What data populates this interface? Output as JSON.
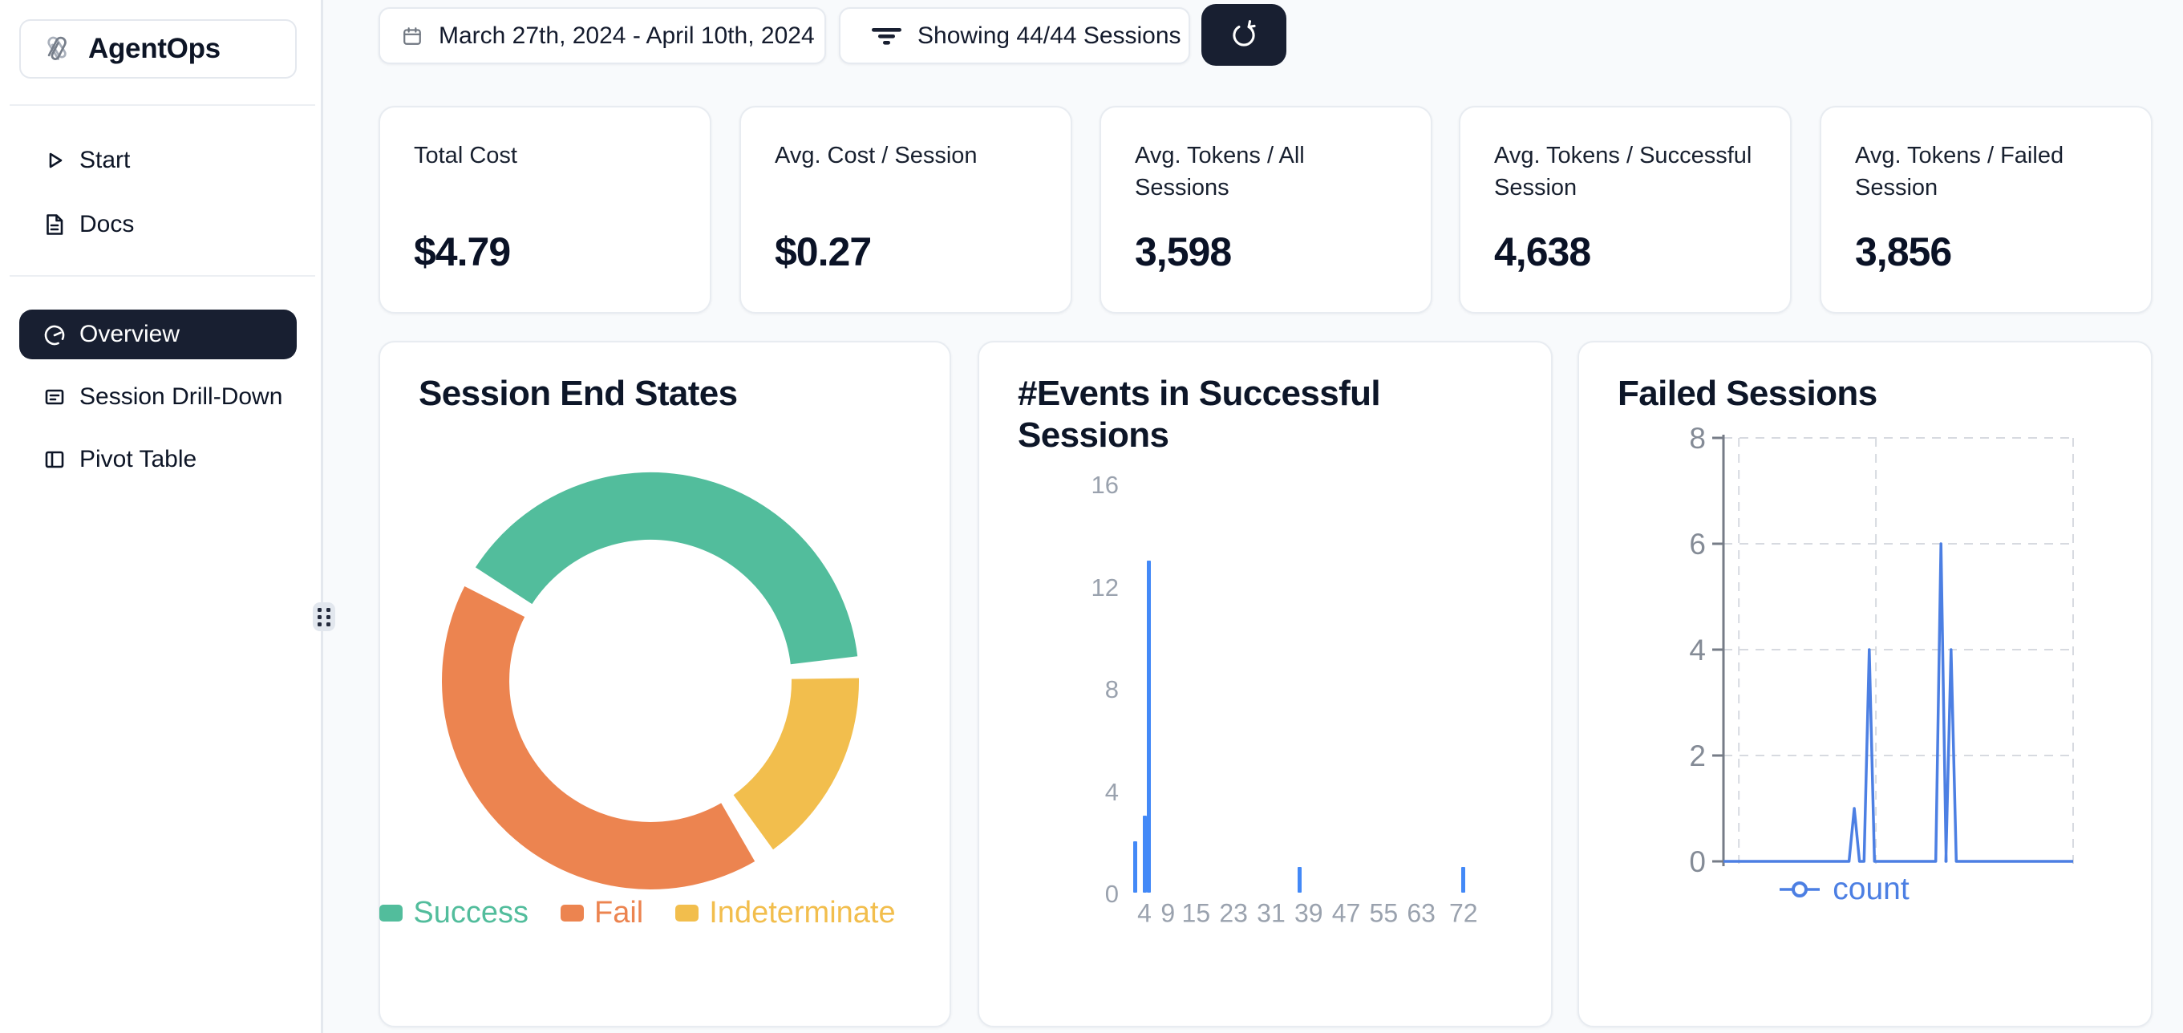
{
  "sidebar": {
    "logo_text": "AgentOps",
    "nav": [
      {
        "label": "Start",
        "icon": "play-icon"
      },
      {
        "label": "Docs",
        "icon": "document-icon"
      }
    ],
    "nav_views": [
      {
        "label": "Overview",
        "icon": "gauge-icon",
        "active": true
      },
      {
        "label": "Session Drill-Down",
        "icon": "list-icon",
        "active": false
      },
      {
        "label": "Pivot Table",
        "icon": "columns-icon",
        "active": false
      }
    ]
  },
  "toolbar": {
    "date_range": "March 27th, 2024 - April 10th, 2024",
    "filter_label": "Showing 44/44 Sessions"
  },
  "stat_cards": [
    {
      "label": "Total Cost",
      "value": "$4.79"
    },
    {
      "label": "Avg. Cost / Session",
      "value": "$0.27"
    },
    {
      "label": "Avg. Tokens / All Sessions",
      "value": "3,598"
    },
    {
      "label": "Avg. Tokens / Successful Session",
      "value": "4,638"
    },
    {
      "label": "Avg. Tokens / Failed Session",
      "value": "3,856"
    }
  ],
  "chart_data": [
    {
      "type": "pie",
      "title": "Session End States",
      "donut": true,
      "legend_position": "bottom",
      "segments": [
        {
          "label": "Success",
          "pct": 41,
          "color": "#52BD9C"
        },
        {
          "label": "Fail",
          "pct": 43,
          "color": "#EC8450"
        },
        {
          "label": "Indeterminate",
          "pct": 16,
          "color": "#F2BE4D"
        }
      ]
    },
    {
      "type": "bar",
      "title": "#Events in Successful Sessions",
      "x": [
        2,
        4,
        5,
        37,
        72
      ],
      "values": [
        2,
        3,
        13,
        1,
        1
      ],
      "x_ticks": [
        4,
        9,
        15,
        23,
        31,
        39,
        47,
        55,
        63,
        72
      ],
      "y_ticks": [
        0,
        4,
        8,
        12,
        16
      ],
      "xlim": [
        1,
        80
      ],
      "ylim": [
        0,
        16
      ],
      "grid": false,
      "bar_color": "#4389F7"
    },
    {
      "type": "line",
      "title": "Failed Sessions",
      "series_name": "count",
      "y_ticks": [
        0,
        2,
        4,
        6,
        8
      ],
      "ylim": [
        0,
        8
      ],
      "baseline": 0,
      "spikes": [
        {
          "pos": 0.374,
          "count": 1
        },
        {
          "pos": 0.417,
          "count": 4
        },
        {
          "pos": 0.622,
          "count": 6
        },
        {
          "pos": 0.651,
          "count": 4
        }
      ],
      "grid": "dashed",
      "line_color": "#4C7FE3"
    }
  ],
  "colors": {
    "accent_dark": "#181F31",
    "success": "#52BD9C",
    "fail": "#EC8450",
    "indeterminate": "#F2BE4D",
    "bar_blue": "#4389F7",
    "line_blue": "#4C7FE3"
  }
}
